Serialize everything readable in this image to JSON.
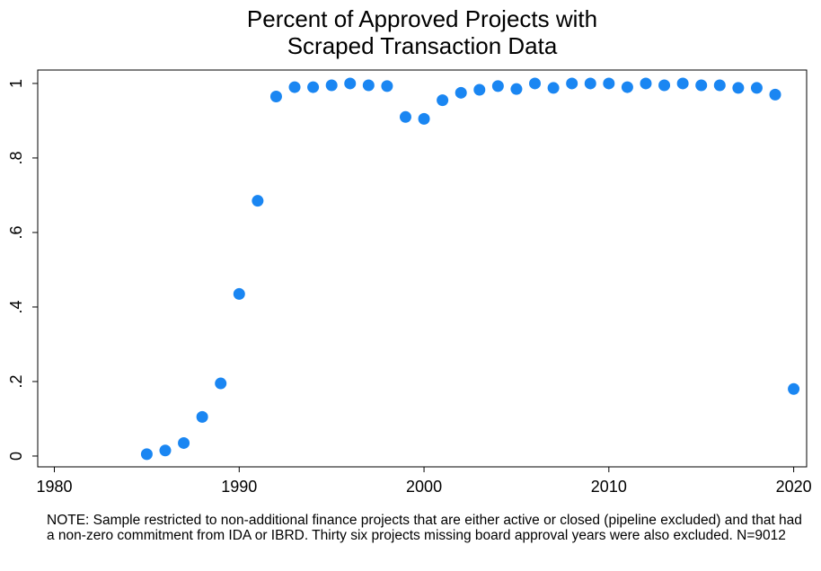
{
  "chart_data": {
    "type": "scatter",
    "title": [
      "Percent of Approved Projects with",
      "Scraped Transaction Data"
    ],
    "note": "NOTE: Sample restricted to non-additional finance projects that are either active or closed (pipeline excluded) and that had a non-zero commitment from IDA or IBRD. Thirty six projects missing board approval years were also excluded. N=9012",
    "color": "#1a86f2",
    "x": [
      1985,
      1986,
      1987,
      1988,
      1989,
      1990,
      1991,
      1992,
      1993,
      1994,
      1995,
      1996,
      1997,
      1998,
      1999,
      2000,
      2001,
      2002,
      2003,
      2004,
      2005,
      2006,
      2007,
      2008,
      2009,
      2010,
      2011,
      2012,
      2013,
      2014,
      2015,
      2016,
      2017,
      2018,
      2019,
      2020
    ],
    "values": [
      0.005,
      0.015,
      0.035,
      0.105,
      0.195,
      0.435,
      0.685,
      0.965,
      0.99,
      0.99,
      0.995,
      1.0,
      0.995,
      0.993,
      0.91,
      0.905,
      0.955,
      0.975,
      0.983,
      0.993,
      0.985,
      1.0,
      0.988,
      1.0,
      1.0,
      1.0,
      0.99,
      1.0,
      0.995,
      1.0,
      0.995,
      0.995,
      0.988,
      0.988,
      0.97,
      0.18
    ],
    "xlim": [
      1979.1,
      2020.7
    ],
    "ylim": [
      -0.029,
      1.036
    ],
    "xticks": [
      1980,
      1990,
      2000,
      2010,
      2020
    ],
    "yticks": [
      0,
      {
        "value": 0.2,
        "label": ".2"
      },
      {
        "value": 0.4,
        "label": ".4"
      },
      {
        "value": 0.6,
        "label": ".6"
      },
      {
        "value": 0.8,
        "label": ".8"
      },
      1
    ],
    "grid": false
  }
}
